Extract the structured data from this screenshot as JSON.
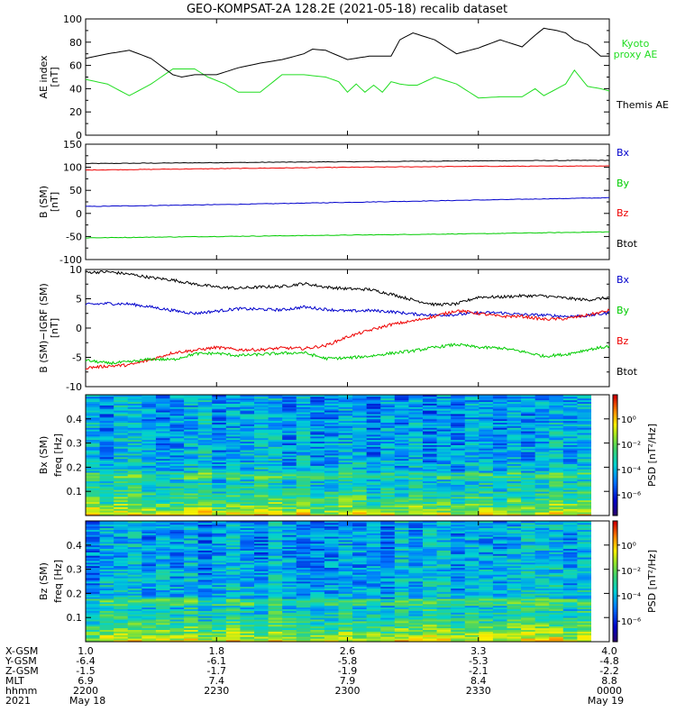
{
  "title": "GEO-KOMPSAT-2A 128.2E (2021-05-18) recalib dataset",
  "chart_data": [
    {
      "type": "line",
      "panel": "ae_index",
      "ylabel": "AE index",
      "yunit": "[nT]",
      "ylim": [
        0,
        100
      ],
      "yticks": [
        "0",
        "20",
        "40",
        "60",
        "80",
        "100"
      ],
      "x_range_minutes": [
        0,
        120
      ],
      "legend": [
        "Kyoto",
        "proxy AE",
        "Themis AE"
      ],
      "colors": {
        "kyoto": "#22dd22",
        "themis": "#000000"
      },
      "series": [
        {
          "name": "Kyoto proxy AE",
          "color": "#22dd22",
          "x": [
            0,
            5,
            10,
            15,
            20,
            25,
            28,
            32,
            35,
            40,
            45,
            50,
            55,
            58,
            60,
            62,
            64,
            66,
            68,
            70,
            72,
            74,
            76,
            80,
            85,
            90,
            95,
            100,
            103,
            105,
            107,
            110,
            112,
            115,
            118,
            120
          ],
          "values": [
            48,
            44,
            34,
            44,
            57,
            57,
            50,
            44,
            37,
            37,
            52,
            52,
            50,
            46,
            37,
            44,
            37,
            43,
            37,
            46,
            44,
            43,
            43,
            50,
            44,
            32,
            33,
            33,
            40,
            34,
            38,
            44,
            56,
            42,
            40,
            38
          ]
        },
        {
          "name": "Themis AE",
          "color": "#000000",
          "x": [
            0,
            5,
            10,
            15,
            20,
            22,
            25,
            30,
            35,
            40,
            45,
            50,
            52,
            55,
            60,
            65,
            70,
            72,
            75,
            80,
            85,
            90,
            95,
            100,
            103,
            105,
            108,
            110,
            112,
            115,
            118,
            120
          ],
          "values": [
            66,
            70,
            73,
            66,
            52,
            50,
            52,
            52,
            58,
            62,
            65,
            70,
            74,
            73,
            65,
            68,
            68,
            82,
            88,
            82,
            70,
            75,
            82,
            76,
            86,
            92,
            90,
            88,
            82,
            78,
            68,
            68
          ]
        }
      ]
    },
    {
      "type": "line",
      "panel": "b_sm",
      "ylabel": "B (SM)",
      "yunit": "[nT]",
      "ylim": [
        -100,
        150
      ],
      "yticks": [
        "-100",
        "-50",
        "0",
        "50",
        "100",
        "150"
      ],
      "legend": [
        "Bx",
        "By",
        "Bz",
        "Btot"
      ],
      "series": [
        {
          "name": "Bx",
          "color": "#000000",
          "x": [
            0,
            30,
            60,
            90,
            120
          ],
          "values": [
            108,
            110,
            112,
            114,
            115
          ]
        },
        {
          "name": "By",
          "color": "#0000cc",
          "x": [
            0,
            30,
            60,
            90,
            120
          ],
          "values": [
            15,
            19,
            24,
            29,
            34
          ]
        },
        {
          "name": "Bz",
          "color": "#ee0000",
          "x": [
            0,
            30,
            60,
            90,
            120
          ],
          "values": [
            94,
            97,
            100,
            102,
            103
          ]
        },
        {
          "name": "Btot",
          "color": "#00cc00",
          "x": [
            0,
            30,
            60,
            90,
            120
          ],
          "values": [
            -53,
            -50,
            -47,
            -44,
            -40
          ]
        }
      ]
    },
    {
      "type": "line",
      "panel": "b_minus_igrf",
      "ylabel": "B (SM)−IGRF (SM)",
      "yunit": "[nT]",
      "ylim": [
        -10,
        10
      ],
      "yticks": [
        "-10",
        "-5",
        "0",
        "5",
        "10"
      ],
      "legend": [
        "Bx",
        "By",
        "Bz",
        "Btot"
      ],
      "series": [
        {
          "name": "Bx",
          "color": "#000000",
          "x": [
            0,
            5,
            10,
            15,
            20,
            25,
            30,
            35,
            40,
            45,
            50,
            55,
            60,
            65,
            70,
            75,
            80,
            85,
            90,
            95,
            100,
            105,
            110,
            115,
            120
          ],
          "values": [
            9.5,
            9.6,
            9.2,
            8.6,
            8.2,
            7.5,
            7.0,
            6.8,
            7.0,
            7.1,
            7.6,
            7.0,
            6.7,
            6.6,
            5.8,
            4.8,
            4.0,
            4.1,
            5.3,
            5.3,
            5.5,
            5.5,
            5.1,
            4.8,
            5.2
          ]
        },
        {
          "name": "By",
          "color": "#0000cc",
          "x": [
            0,
            5,
            10,
            15,
            20,
            25,
            30,
            35,
            40,
            45,
            50,
            55,
            60,
            65,
            70,
            75,
            80,
            85,
            90,
            95,
            100,
            105,
            110,
            115,
            120
          ],
          "values": [
            4.0,
            4.2,
            4.1,
            3.6,
            3.0,
            2.5,
            2.9,
            3.3,
            3.2,
            3.1,
            3.6,
            3.2,
            2.9,
            3.0,
            2.8,
            2.4,
            2.2,
            2.3,
            2.6,
            2.6,
            2.3,
            2.2,
            2.0,
            2.1,
            2.6
          ]
        },
        {
          "name": "Bz",
          "color": "#ee0000",
          "x": [
            0,
            5,
            10,
            15,
            20,
            25,
            30,
            35,
            40,
            45,
            50,
            55,
            60,
            65,
            70,
            75,
            80,
            85,
            90,
            95,
            100,
            105,
            110,
            115,
            120
          ],
          "values": [
            -6.8,
            -6.5,
            -6.3,
            -5.4,
            -4.2,
            -3.8,
            -3.3,
            -3.7,
            -3.7,
            -3.4,
            -3.5,
            -3.0,
            -1.5,
            -0.4,
            0.6,
            1.2,
            2.0,
            3.0,
            2.5,
            2.0,
            2.0,
            1.5,
            1.6,
            2.2,
            3.0
          ]
        },
        {
          "name": "Btot",
          "color": "#00cc00",
          "x": [
            0,
            5,
            10,
            15,
            20,
            25,
            30,
            35,
            40,
            45,
            50,
            55,
            60,
            65,
            70,
            75,
            80,
            85,
            90,
            95,
            100,
            105,
            110,
            115,
            120
          ],
          "values": [
            -5.5,
            -6.0,
            -5.8,
            -5.3,
            -5.4,
            -4.4,
            -4.3,
            -4.7,
            -4.5,
            -4.3,
            -4.2,
            -5.2,
            -5.1,
            -4.8,
            -4.3,
            -3.9,
            -3.3,
            -2.8,
            -3.3,
            -3.4,
            -4.0,
            -4.8,
            -4.5,
            -3.7,
            -3.1
          ]
        }
      ]
    },
    {
      "type": "heatmap",
      "panel": "bx_spectrogram",
      "ylabel": "Bx (SM)",
      "yunit_label": "freq [Hz]",
      "ylim": [
        0,
        0.5
      ],
      "yticks": [
        "0.1",
        "0.2",
        "0.3",
        "0.4"
      ],
      "colorbar_label": "PSD [nT²/Hz]",
      "colorbar_ticks": [
        "10⁰",
        "10⁻²",
        "10⁻⁴",
        "10⁻⁶"
      ]
    },
    {
      "type": "heatmap",
      "panel": "bz_spectrogram",
      "ylabel": "Bz (SM)",
      "yunit_label": "freq [Hz]",
      "ylim": [
        0,
        0.5
      ],
      "yticks": [
        "0.1",
        "0.2",
        "0.3",
        "0.4"
      ],
      "colorbar_label": "PSD [nT²/Hz]",
      "colorbar_ticks": [
        "10⁰",
        "10⁻²",
        "10⁻⁴",
        "10⁻⁶"
      ]
    }
  ],
  "x_axis": {
    "row_labels": [
      "X-GSM",
      "Y-GSM",
      "Z-GSM",
      "MLT",
      "hhmm",
      "2021"
    ],
    "ticks": [
      {
        "x_minutes": 0,
        "values": [
          "1.0",
          "-6.4",
          "-1.5",
          "6.9",
          "2200",
          "May 18"
        ]
      },
      {
        "x_minutes": 30,
        "values": [
          "1.8",
          "-6.1",
          "-1.7",
          "7.4",
          "2230",
          ""
        ]
      },
      {
        "x_minutes": 60,
        "values": [
          "2.6",
          "-5.8",
          "-1.9",
          "7.9",
          "2300",
          ""
        ]
      },
      {
        "x_minutes": 90,
        "values": [
          "3.3",
          "-5.3",
          "-2.1",
          "8.4",
          "2330",
          ""
        ]
      },
      {
        "x_minutes": 120,
        "values": [
          "4.0",
          "-4.8",
          "-2.2",
          "8.8",
          "0000",
          "May 19"
        ]
      }
    ]
  }
}
